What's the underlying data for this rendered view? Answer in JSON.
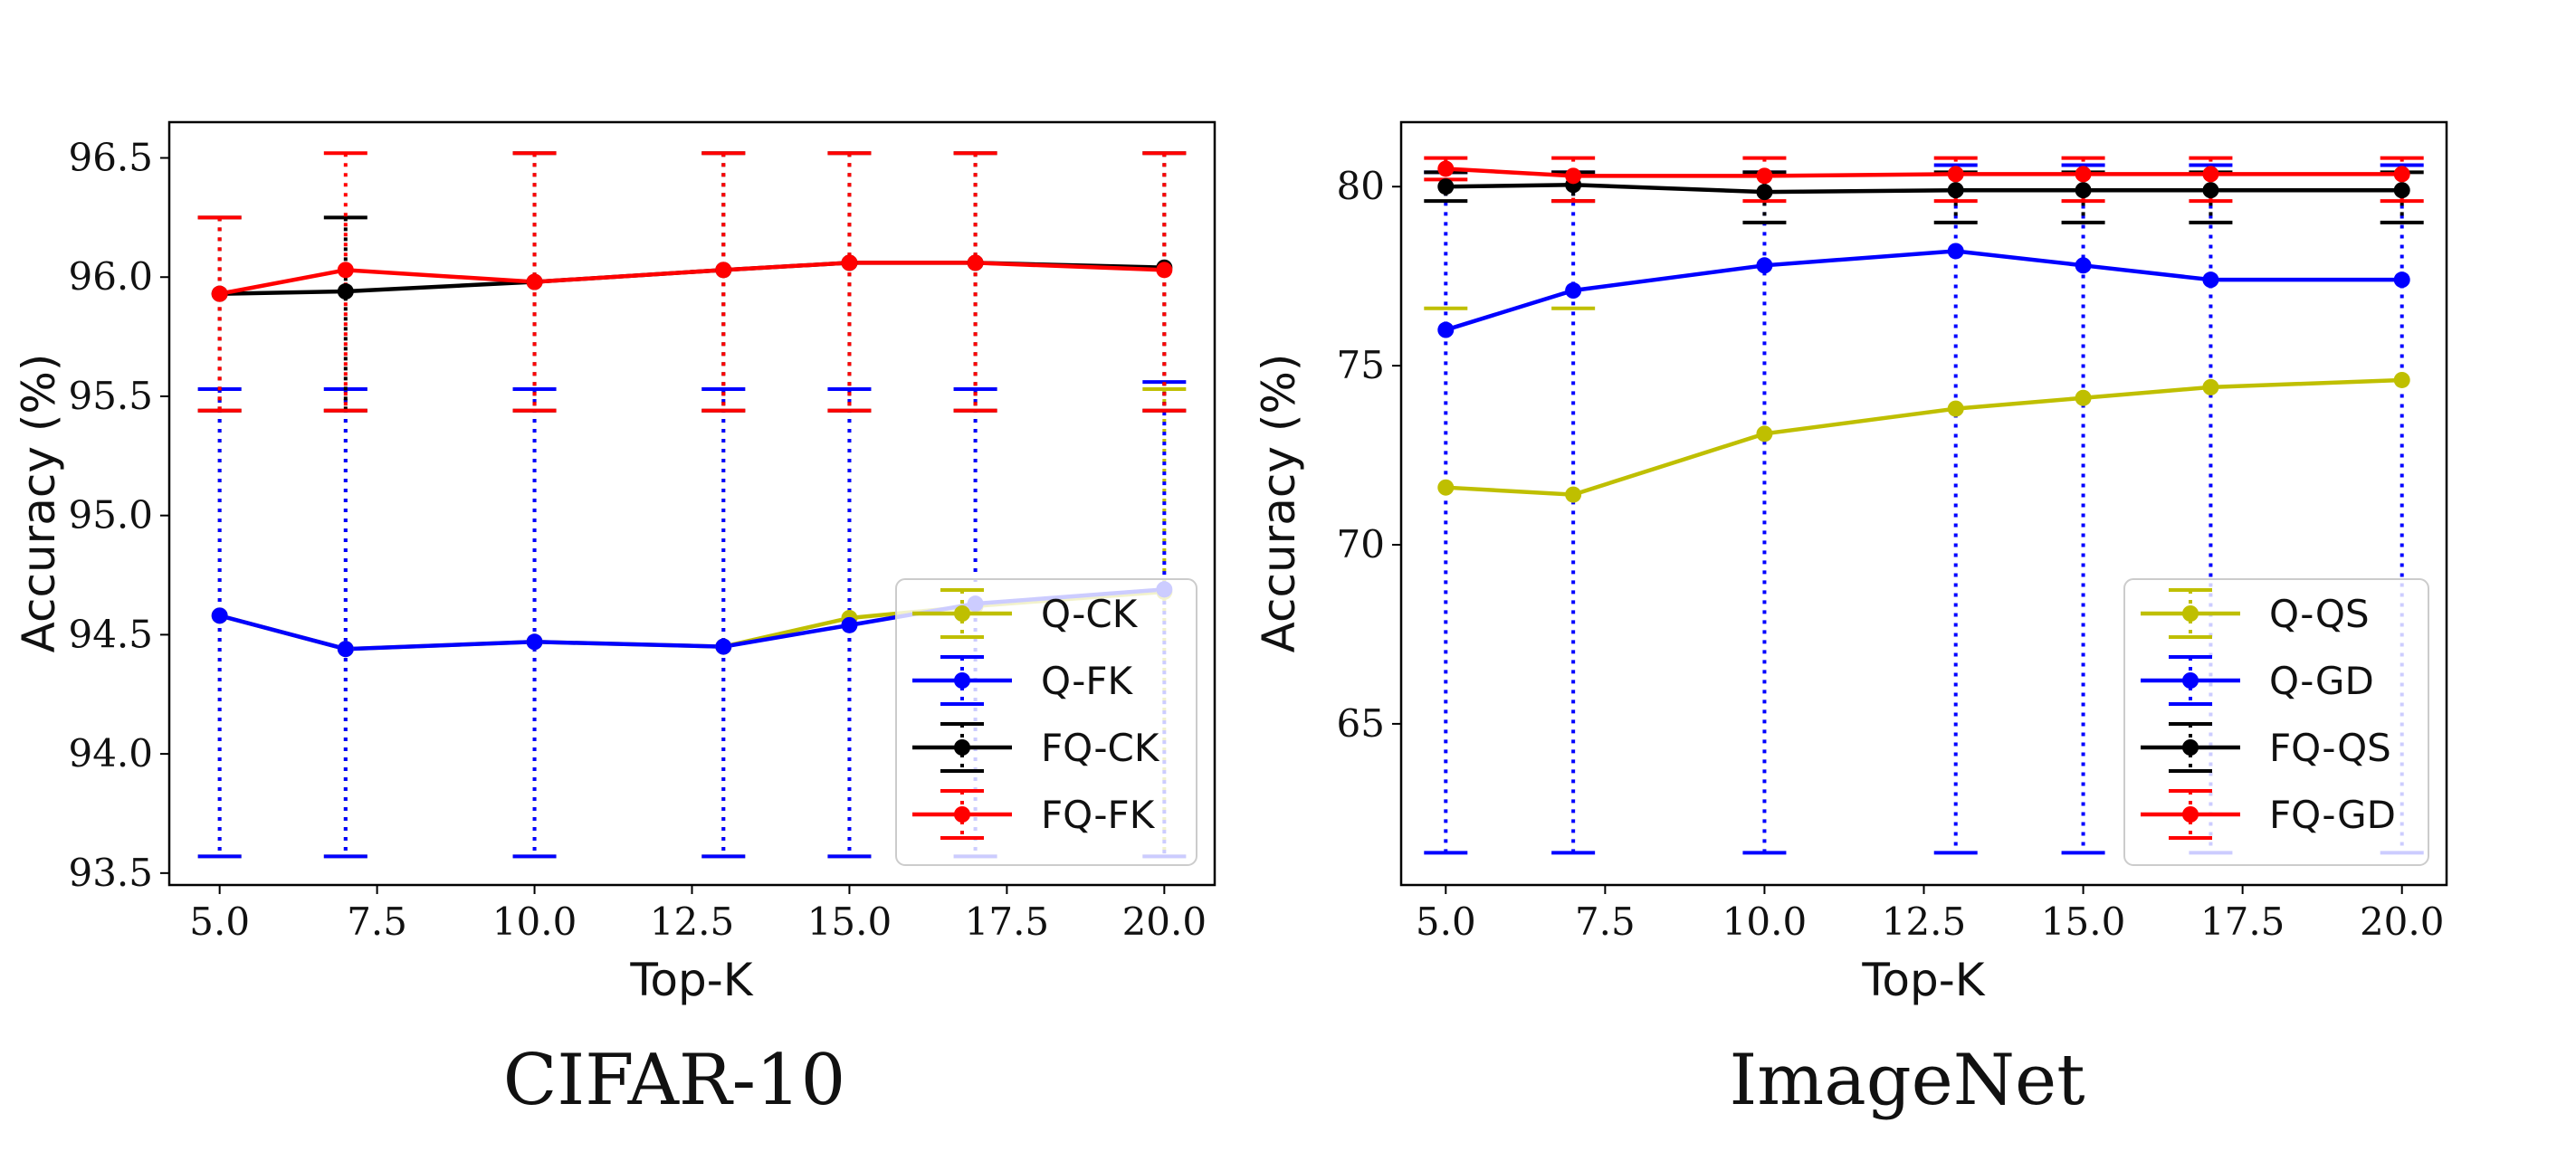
{
  "chart_data": [
    {
      "type": "line",
      "title": "",
      "caption": "CIFAR-10",
      "xlabel": "Top-K",
      "ylabel": "Accuracy (%)",
      "xlim": [
        4.2,
        20.8
      ],
      "ylim": [
        93.45,
        96.65
      ],
      "xticks": [
        "5.0",
        "7.5",
        "10.0",
        "12.5",
        "15.0",
        "17.5",
        "20.0"
      ],
      "yticks": [
        "93.5",
        "94.0",
        "94.5",
        "95.0",
        "95.5",
        "96.0",
        "96.5"
      ],
      "x": [
        5,
        7,
        10,
        13,
        15,
        17,
        20
      ],
      "legend_position": "lower-right",
      "grid": false,
      "series": [
        {
          "name": "Q-CK",
          "color": "#bfbf00",
          "values": [
            94.58,
            94.44,
            94.47,
            94.45,
            94.57,
            94.62,
            94.68
          ],
          "err_low": [
            93.57,
            93.57,
            93.57,
            93.57,
            93.57,
            93.57,
            93.57
          ],
          "err_high": [
            95.53,
            95.53,
            95.53,
            95.53,
            95.53,
            95.53,
            95.53
          ]
        },
        {
          "name": "Q-FK",
          "color": "#0000ff",
          "values": [
            94.58,
            94.44,
            94.47,
            94.45,
            94.54,
            94.63,
            94.69
          ],
          "err_low": [
            93.57,
            93.57,
            93.57,
            93.57,
            93.57,
            93.57,
            93.57
          ],
          "err_high": [
            95.53,
            95.53,
            95.53,
            95.53,
            95.53,
            95.53,
            95.56
          ]
        },
        {
          "name": "FQ-CK",
          "color": "#000000",
          "values": [
            95.93,
            95.94,
            95.98,
            96.03,
            96.06,
            96.06,
            96.04
          ],
          "err_low": [
            95.44,
            95.44,
            95.44,
            95.44,
            95.44,
            95.44,
            95.44
          ],
          "err_high": [
            96.25,
            96.25,
            96.52,
            96.52,
            96.52,
            96.52,
            96.52
          ]
        },
        {
          "name": "FQ-FK",
          "color": "#ff0000",
          "values": [
            95.93,
            96.03,
            95.98,
            96.03,
            96.06,
            96.06,
            96.03
          ],
          "err_low": [
            95.44,
            95.44,
            95.44,
            95.44,
            95.44,
            95.44,
            95.44
          ],
          "err_high": [
            96.25,
            96.52,
            96.52,
            96.52,
            96.52,
            96.52,
            96.52
          ]
        }
      ]
    },
    {
      "type": "line",
      "title": "",
      "caption": "ImageNet",
      "xlabel": "Top-K",
      "ylabel": "Accuracy (%)",
      "xlim": [
        4.3,
        20.7
      ],
      "ylim": [
        60.5,
        81.8
      ],
      "xticks": [
        "5.0",
        "7.5",
        "10.0",
        "12.5",
        "15.0",
        "17.5",
        "20.0"
      ],
      "yticks": [
        "65",
        "70",
        "75",
        "80"
      ],
      "x": [
        5,
        7,
        10,
        13,
        15,
        17,
        20
      ],
      "legend_position": "lower-right",
      "grid": false,
      "series": [
        {
          "name": "Q-QS",
          "color": "#bfbf00",
          "values": [
            71.6,
            71.4,
            73.1,
            73.8,
            74.1,
            74.4,
            74.6
          ],
          "err_low": [
            null,
            null,
            null,
            null,
            null,
            null,
            null
          ],
          "err_high": [
            76.6,
            76.6,
            null,
            null,
            null,
            null,
            null
          ]
        },
        {
          "name": "Q-GD",
          "color": "#0000ff",
          "values": [
            76.0,
            77.1,
            77.8,
            78.2,
            77.8,
            77.4,
            77.4
          ],
          "err_low": [
            61.4,
            61.4,
            61.4,
            61.4,
            61.4,
            61.4,
            61.4
          ],
          "err_high": [
            80.4,
            80.4,
            80.4,
            80.6,
            80.6,
            80.6,
            80.6
          ]
        },
        {
          "name": "FQ-QS",
          "color": "#000000",
          "values": [
            80.0,
            80.05,
            79.85,
            79.9,
            79.9,
            79.9,
            79.9
          ],
          "err_low": [
            79.6,
            79.6,
            79.0,
            79.0,
            79.0,
            79.0,
            79.0
          ],
          "err_high": [
            80.4,
            80.4,
            80.4,
            80.4,
            80.4,
            80.4,
            80.4
          ]
        },
        {
          "name": "FQ-GD",
          "color": "#ff0000",
          "values": [
            80.5,
            80.3,
            80.3,
            80.35,
            80.35,
            80.35,
            80.35
          ],
          "err_low": [
            80.2,
            79.6,
            79.6,
            79.6,
            79.6,
            79.6,
            79.6
          ],
          "err_high": [
            80.8,
            80.8,
            80.8,
            80.8,
            80.8,
            80.8,
            80.8
          ]
        }
      ]
    }
  ]
}
